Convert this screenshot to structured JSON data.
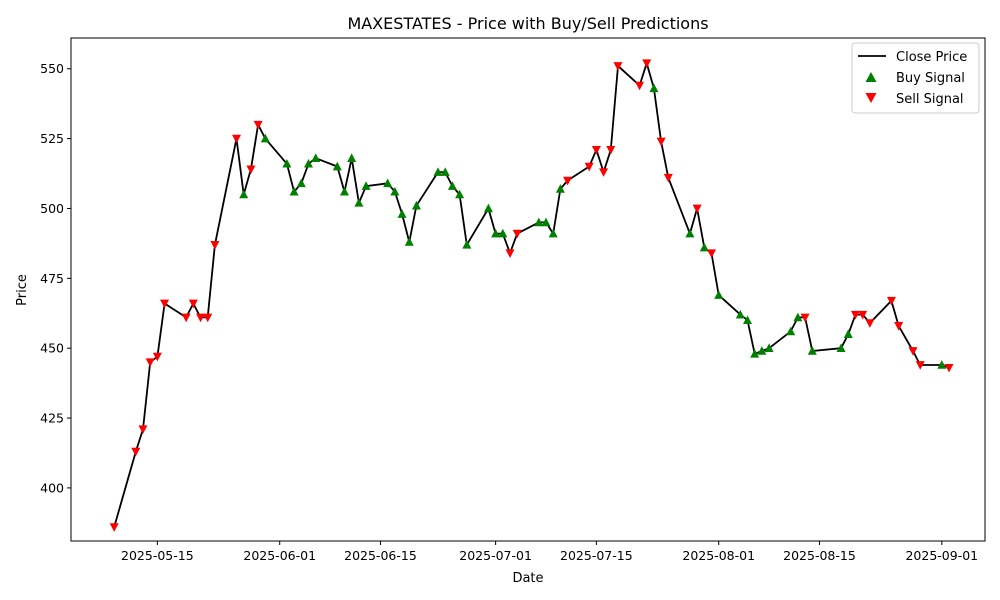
{
  "chart_data": {
    "type": "line",
    "title": "MAXESTATES - Price with Buy/Sell Predictions",
    "xlabel": "Date",
    "ylabel": "Price",
    "x_range": [
      "2025-05-03",
      "2025-09-07"
    ],
    "ylim": [
      381,
      561
    ],
    "x_ticks": [
      "2025-05-15",
      "2025-06-01",
      "2025-06-15",
      "2025-07-01",
      "2025-07-15",
      "2025-08-01",
      "2025-08-15",
      "2025-09-01"
    ],
    "y_ticks": [
      400,
      425,
      450,
      475,
      500,
      525,
      550
    ],
    "grid": false,
    "legend_position": "top-right",
    "legend": {
      "close": "Close Price",
      "buy": "Buy Signal",
      "sell": "Sell Signal"
    },
    "colors": {
      "close": "#000000",
      "buy": "#008000",
      "sell": "#ff0000"
    },
    "series": [
      {
        "name": "Close Price",
        "points": [
          [
            "2025-05-09",
            386
          ],
          [
            "2025-05-12",
            413
          ],
          [
            "2025-05-13",
            421
          ],
          [
            "2025-05-14",
            445
          ],
          [
            "2025-05-15",
            447
          ],
          [
            "2025-05-16",
            466
          ],
          [
            "2025-05-19",
            461
          ],
          [
            "2025-05-20",
            466
          ],
          [
            "2025-05-21",
            461
          ],
          [
            "2025-05-22",
            461
          ],
          [
            "2025-05-23",
            487
          ],
          [
            "2025-05-26",
            525
          ],
          [
            "2025-05-27",
            505
          ],
          [
            "2025-05-28",
            514
          ],
          [
            "2025-05-29",
            530
          ],
          [
            "2025-05-30",
            525
          ],
          [
            "2025-06-02",
            516
          ],
          [
            "2025-06-03",
            506
          ],
          [
            "2025-06-04",
            509
          ],
          [
            "2025-06-05",
            516
          ],
          [
            "2025-06-06",
            518
          ],
          [
            "2025-06-09",
            515
          ],
          [
            "2025-06-10",
            506
          ],
          [
            "2025-06-11",
            518
          ],
          [
            "2025-06-12",
            502
          ],
          [
            "2025-06-13",
            508
          ],
          [
            "2025-06-16",
            509
          ],
          [
            "2025-06-17",
            506
          ],
          [
            "2025-06-18",
            498
          ],
          [
            "2025-06-19",
            488
          ],
          [
            "2025-06-20",
            501
          ],
          [
            "2025-06-23",
            513
          ],
          [
            "2025-06-24",
            513
          ],
          [
            "2025-06-25",
            508
          ],
          [
            "2025-06-26",
            505
          ],
          [
            "2025-06-27",
            487
          ],
          [
            "2025-06-30",
            500
          ],
          [
            "2025-07-01",
            491
          ],
          [
            "2025-07-02",
            491
          ],
          [
            "2025-07-03",
            484
          ],
          [
            "2025-07-04",
            491
          ],
          [
            "2025-07-07",
            495
          ],
          [
            "2025-07-08",
            495
          ],
          [
            "2025-07-09",
            491
          ],
          [
            "2025-07-10",
            507
          ],
          [
            "2025-07-11",
            510
          ],
          [
            "2025-07-14",
            515
          ],
          [
            "2025-07-15",
            521
          ],
          [
            "2025-07-16",
            513
          ],
          [
            "2025-07-17",
            521
          ],
          [
            "2025-07-18",
            551
          ],
          [
            "2025-07-21",
            544
          ],
          [
            "2025-07-22",
            552
          ],
          [
            "2025-07-23",
            543
          ],
          [
            "2025-07-24",
            524
          ],
          [
            "2025-07-25",
            511
          ],
          [
            "2025-07-28",
            491
          ],
          [
            "2025-07-29",
            500
          ],
          [
            "2025-07-30",
            486
          ],
          [
            "2025-07-31",
            484
          ],
          [
            "2025-08-01",
            469
          ],
          [
            "2025-08-04",
            462
          ],
          [
            "2025-08-05",
            460
          ],
          [
            "2025-08-06",
            448
          ],
          [
            "2025-08-07",
            449
          ],
          [
            "2025-08-08",
            450
          ],
          [
            "2025-08-11",
            456
          ],
          [
            "2025-08-12",
            461
          ],
          [
            "2025-08-13",
            461
          ],
          [
            "2025-08-14",
            449
          ],
          [
            "2025-08-18",
            450
          ],
          [
            "2025-08-19",
            455
          ],
          [
            "2025-08-20",
            462
          ],
          [
            "2025-08-21",
            462
          ],
          [
            "2025-08-22",
            459
          ],
          [
            "2025-08-25",
            467
          ],
          [
            "2025-08-26",
            458
          ],
          [
            "2025-08-28",
            449
          ],
          [
            "2025-08-29",
            444
          ],
          [
            "2025-09-01",
            444
          ],
          [
            "2025-09-02",
            443
          ]
        ]
      },
      {
        "name": "Buy Signal",
        "points": [
          [
            "2025-05-27",
            505
          ],
          [
            "2025-05-30",
            525
          ],
          [
            "2025-06-02",
            516
          ],
          [
            "2025-06-03",
            506
          ],
          [
            "2025-06-04",
            509
          ],
          [
            "2025-06-05",
            516
          ],
          [
            "2025-06-06",
            518
          ],
          [
            "2025-06-09",
            515
          ],
          [
            "2025-06-10",
            506
          ],
          [
            "2025-06-11",
            518
          ],
          [
            "2025-06-12",
            502
          ],
          [
            "2025-06-13",
            508
          ],
          [
            "2025-06-16",
            509
          ],
          [
            "2025-06-17",
            506
          ],
          [
            "2025-06-18",
            498
          ],
          [
            "2025-06-19",
            488
          ],
          [
            "2025-06-20",
            501
          ],
          [
            "2025-06-23",
            513
          ],
          [
            "2025-06-24",
            513
          ],
          [
            "2025-06-25",
            508
          ],
          [
            "2025-06-26",
            505
          ],
          [
            "2025-06-27",
            487
          ],
          [
            "2025-06-30",
            500
          ],
          [
            "2025-07-01",
            491
          ],
          [
            "2025-07-02",
            491
          ],
          [
            "2025-07-07",
            495
          ],
          [
            "2025-07-08",
            495
          ],
          [
            "2025-07-09",
            491
          ],
          [
            "2025-07-10",
            507
          ],
          [
            "2025-07-23",
            543
          ],
          [
            "2025-07-28",
            491
          ],
          [
            "2025-07-30",
            486
          ],
          [
            "2025-08-01",
            469
          ],
          [
            "2025-08-04",
            462
          ],
          [
            "2025-08-05",
            460
          ],
          [
            "2025-08-06",
            448
          ],
          [
            "2025-08-07",
            449
          ],
          [
            "2025-08-08",
            450
          ],
          [
            "2025-08-11",
            456
          ],
          [
            "2025-08-12",
            461
          ],
          [
            "2025-08-14",
            449
          ],
          [
            "2025-08-18",
            450
          ],
          [
            "2025-08-19",
            455
          ],
          [
            "2025-09-01",
            444
          ]
        ]
      },
      {
        "name": "Sell Signal",
        "points": [
          [
            "2025-05-09",
            386
          ],
          [
            "2025-05-12",
            413
          ],
          [
            "2025-05-13",
            421
          ],
          [
            "2025-05-14",
            445
          ],
          [
            "2025-05-15",
            447
          ],
          [
            "2025-05-16",
            466
          ],
          [
            "2025-05-19",
            461
          ],
          [
            "2025-05-20",
            466
          ],
          [
            "2025-05-21",
            461
          ],
          [
            "2025-05-22",
            461
          ],
          [
            "2025-05-23",
            487
          ],
          [
            "2025-05-26",
            525
          ],
          [
            "2025-05-28",
            514
          ],
          [
            "2025-05-29",
            530
          ],
          [
            "2025-07-03",
            484
          ],
          [
            "2025-07-04",
            491
          ],
          [
            "2025-07-11",
            510
          ],
          [
            "2025-07-14",
            515
          ],
          [
            "2025-07-15",
            521
          ],
          [
            "2025-07-16",
            513
          ],
          [
            "2025-07-17",
            521
          ],
          [
            "2025-07-18",
            551
          ],
          [
            "2025-07-21",
            544
          ],
          [
            "2025-07-22",
            552
          ],
          [
            "2025-07-24",
            524
          ],
          [
            "2025-07-25",
            511
          ],
          [
            "2025-07-29",
            500
          ],
          [
            "2025-07-31",
            484
          ],
          [
            "2025-08-13",
            461
          ],
          [
            "2025-08-20",
            462
          ],
          [
            "2025-08-21",
            462
          ],
          [
            "2025-08-22",
            459
          ],
          [
            "2025-08-25",
            467
          ],
          [
            "2025-08-26",
            458
          ],
          [
            "2025-08-28",
            449
          ],
          [
            "2025-08-29",
            444
          ],
          [
            "2025-09-02",
            443
          ]
        ]
      }
    ]
  }
}
